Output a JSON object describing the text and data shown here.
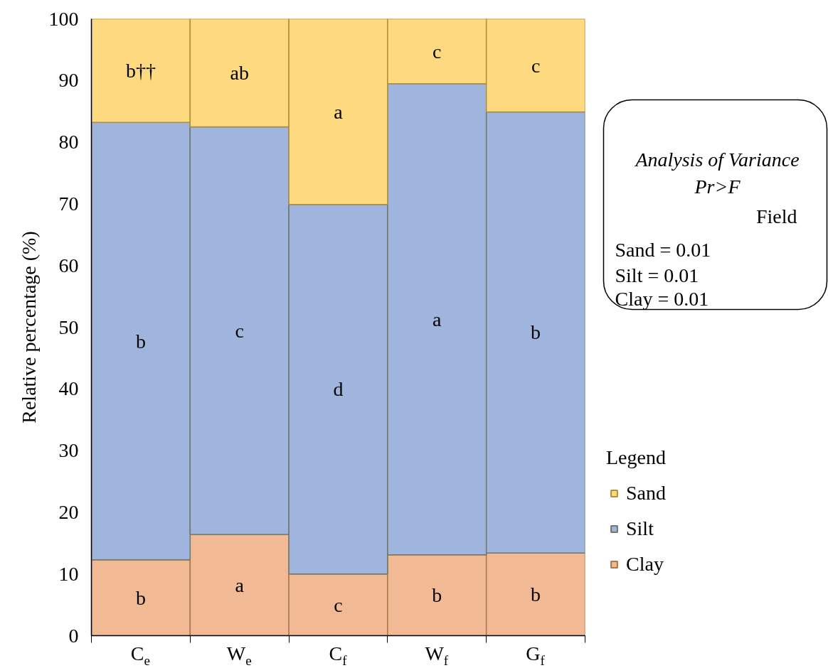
{
  "chart_data": {
    "type": "bar",
    "stacked": true,
    "ylabel": "Relative percentage (%)",
    "categories": [
      "C$_{e}$",
      "W$_{e}$",
      "C$_{f}$",
      "W$_{f}$",
      "G$_{f}$"
    ],
    "series": [
      {
        "name": "Clay",
        "color": "#f2b995",
        "values": [
          12.3,
          16.4,
          10.0,
          13.1,
          13.4
        ],
        "value_labels": [
          "b",
          "a",
          "c",
          "b",
          "b"
        ]
      },
      {
        "name": "Silt",
        "color": "#a0b5de",
        "values": [
          70.9,
          66.1,
          59.9,
          76.4,
          71.5
        ],
        "value_labels": [
          "b",
          "c",
          "d",
          "a",
          "b"
        ]
      },
      {
        "name": "Sand",
        "color": "#fdd97f",
        "values": [
          16.8,
          17.5,
          30.1,
          10.5,
          15.1
        ],
        "value_labels": [
          "b††",
          "ab",
          "a",
          "c",
          "c"
        ]
      }
    ],
    "ylim": [
      0,
      100
    ],
    "yticks": [
      0,
      10,
      20,
      30,
      40,
      50,
      60,
      70,
      80,
      90,
      100
    ],
    "legend": "right",
    "legend_title": "Legend",
    "annotations": [
      "Analysis of Variance",
      "Pr>F",
      "Field",
      "Sand  =   0.01",
      "Silt    =   0.01",
      "Clay   =   0.01"
    ]
  }
}
